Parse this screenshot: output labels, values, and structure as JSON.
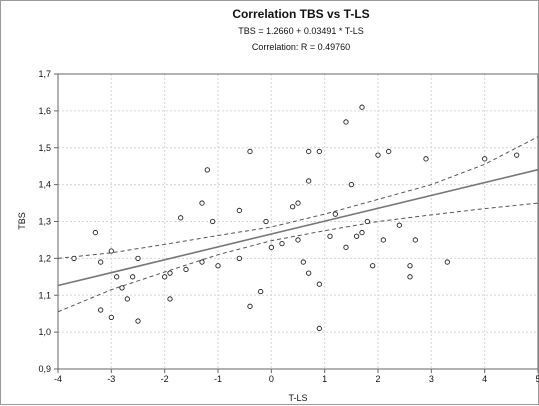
{
  "chart_data": {
    "type": "scatter",
    "title": "Correlation TBS vs T-LS",
    "subtitle_line1": "TBS = 1.2660 + 0.03491 * T-LS",
    "subtitle_line2": "Correlation: R = 0.49760",
    "xlabel": "T-LS",
    "ylabel": "TBS",
    "xlim": [
      -4,
      5
    ],
    "ylim": [
      0.9,
      1.7
    ],
    "x_ticks": [
      "-4",
      "-3",
      "-2",
      "-1",
      "0",
      "1",
      "2",
      "3",
      "4",
      "5"
    ],
    "y_ticks": [
      "0,9",
      "1,0",
      "1,1",
      "1,2",
      "1,3",
      "1,4",
      "1,5",
      "1,6",
      "1,7"
    ],
    "grid": true,
    "regression": {
      "intercept": 1.266,
      "slope": 0.03491
    },
    "confidence_band": {
      "upper": [
        [
          -4,
          1.2
        ],
        [
          -3,
          1.215
        ],
        [
          -2,
          1.238
        ],
        [
          -1,
          1.262
        ],
        [
          0,
          1.285
        ],
        [
          1,
          1.32
        ],
        [
          2,
          1.36
        ],
        [
          3,
          1.4
        ],
        [
          4,
          1.455
        ],
        [
          5,
          1.53
        ]
      ],
      "lower": [
        [
          -4,
          1.055
        ],
        [
          -3,
          1.115
        ],
        [
          -2,
          1.163
        ],
        [
          -1,
          1.21
        ],
        [
          0,
          1.248
        ],
        [
          1,
          1.275
        ],
        [
          2,
          1.3
        ],
        [
          3,
          1.318
        ],
        [
          4,
          1.335
        ],
        [
          5,
          1.35
        ]
      ]
    },
    "points": [
      [
        -3.7,
        1.2
      ],
      [
        -3.3,
        1.27
      ],
      [
        -3.2,
        1.19
      ],
      [
        -3.2,
        1.06
      ],
      [
        -3.0,
        1.22
      ],
      [
        -3.0,
        1.04
      ],
      [
        -2.9,
        1.15
      ],
      [
        -2.8,
        1.12
      ],
      [
        -2.7,
        1.09
      ],
      [
        -2.6,
        1.15
      ],
      [
        -2.5,
        1.2
      ],
      [
        -2.5,
        1.03
      ],
      [
        -2.0,
        1.15
      ],
      [
        -1.9,
        1.16
      ],
      [
        -1.9,
        1.09
      ],
      [
        -1.7,
        1.31
      ],
      [
        -1.6,
        1.17
      ],
      [
        -1.3,
        1.35
      ],
      [
        -1.3,
        1.19
      ],
      [
        -1.2,
        1.44
      ],
      [
        -1.1,
        1.3
      ],
      [
        -1.0,
        1.18
      ],
      [
        -0.6,
        1.33
      ],
      [
        -0.6,
        1.2
      ],
      [
        -0.4,
        1.49
      ],
      [
        -0.4,
        1.07
      ],
      [
        -0.2,
        1.11
      ],
      [
        -0.1,
        1.3
      ],
      [
        0.0,
        1.23
      ],
      [
        0.2,
        1.24
      ],
      [
        0.4,
        1.34
      ],
      [
        0.5,
        1.35
      ],
      [
        0.5,
        1.25
      ],
      [
        0.6,
        1.19
      ],
      [
        0.7,
        1.49
      ],
      [
        0.7,
        1.41
      ],
      [
        0.7,
        1.16
      ],
      [
        0.9,
        1.49
      ],
      [
        0.9,
        1.13
      ],
      [
        0.9,
        1.01
      ],
      [
        1.1,
        1.26
      ],
      [
        1.2,
        1.32
      ],
      [
        1.4,
        1.57
      ],
      [
        1.4,
        1.23
      ],
      [
        1.5,
        1.4
      ],
      [
        1.6,
        1.26
      ],
      [
        1.7,
        1.27
      ],
      [
        1.7,
        1.61
      ],
      [
        1.8,
        1.3
      ],
      [
        1.9,
        1.18
      ],
      [
        2.0,
        1.48
      ],
      [
        2.1,
        1.25
      ],
      [
        2.2,
        1.49
      ],
      [
        2.4,
        1.29
      ],
      [
        2.6,
        1.18
      ],
      [
        2.6,
        1.15
      ],
      [
        2.7,
        1.25
      ],
      [
        2.9,
        1.47
      ],
      [
        3.3,
        1.19
      ],
      [
        4.0,
        1.47
      ],
      [
        4.6,
        1.48
      ]
    ]
  }
}
